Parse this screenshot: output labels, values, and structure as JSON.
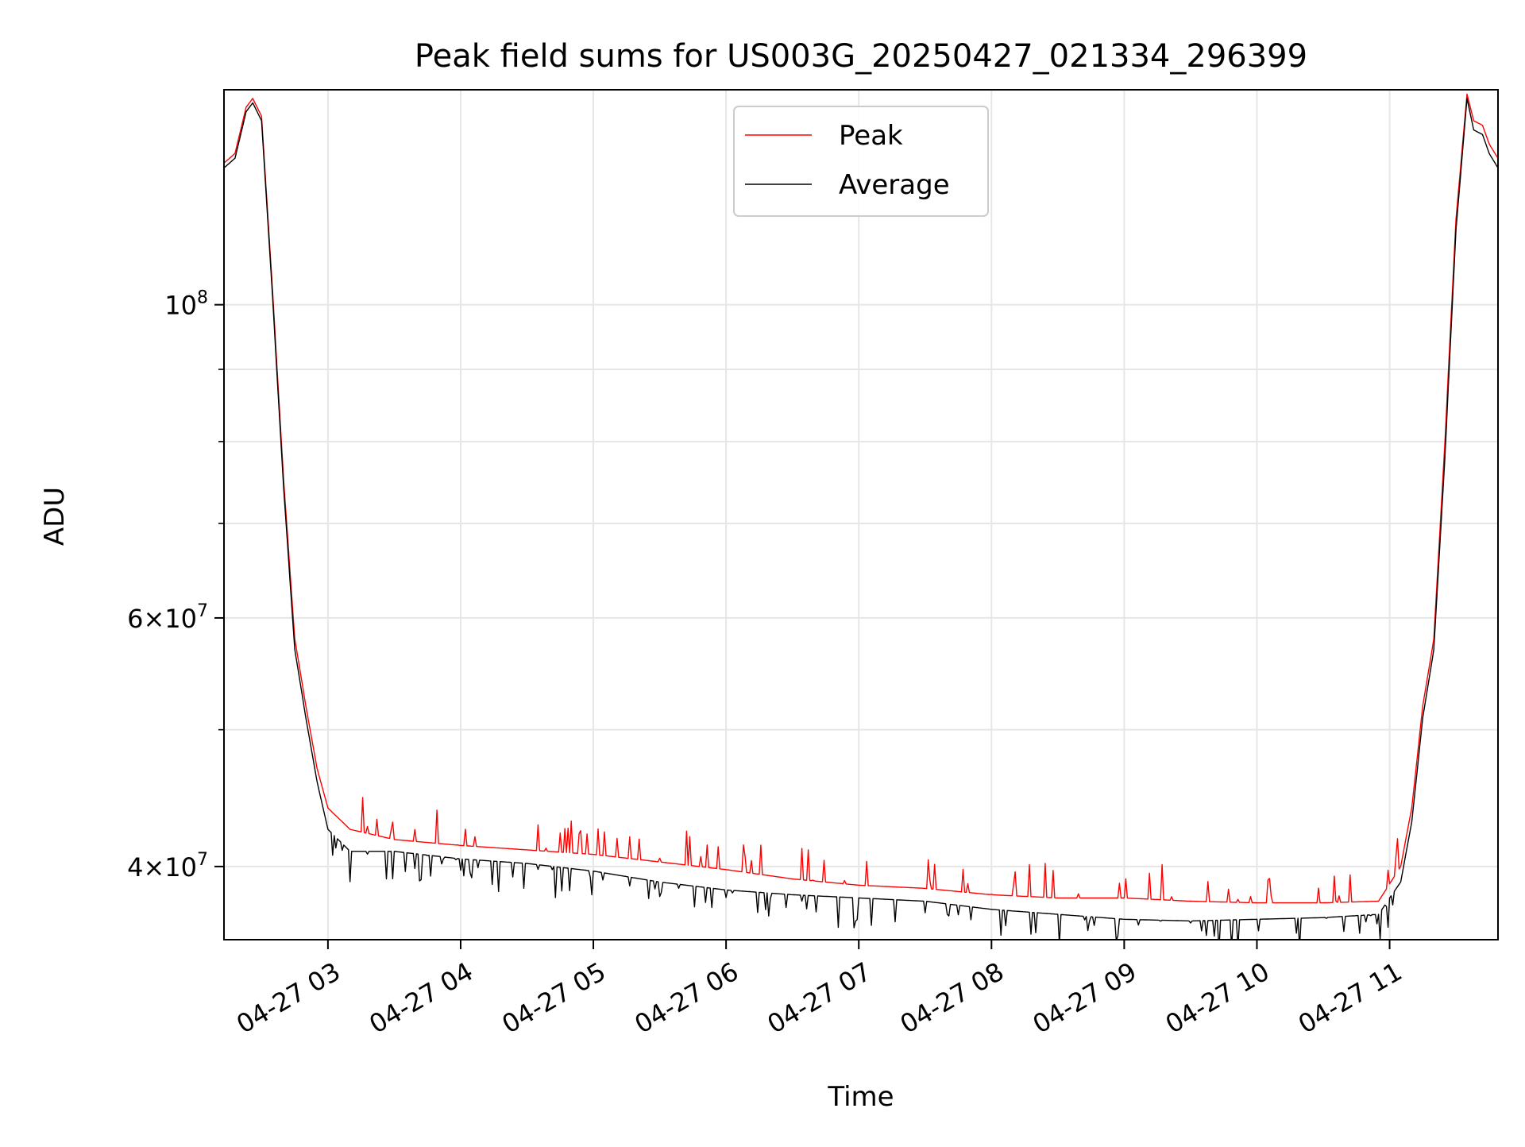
{
  "chart_data": {
    "type": "line",
    "title": "Peak field sums for US003G_20250427_021334_296399",
    "xlabel": "Time",
    "ylabel": "ADU",
    "yscale": "log",
    "xlim": [
      "2025-04-27 02:13",
      "2025-04-27 11:49"
    ],
    "ylim": [
      35500000,
      142000000
    ],
    "grid": true,
    "legend": "upper center",
    "xticks": [
      {
        "t": "2025-04-27 03:00",
        "label": "04-27 03"
      },
      {
        "t": "2025-04-27 04:00",
        "label": "04-27 04"
      },
      {
        "t": "2025-04-27 05:00",
        "label": "04-27 05"
      },
      {
        "t": "2025-04-27 06:00",
        "label": "04-27 06"
      },
      {
        "t": "2025-04-27 07:00",
        "label": "04-27 07"
      },
      {
        "t": "2025-04-27 08:00",
        "label": "04-27 08"
      },
      {
        "t": "2025-04-27 09:00",
        "label": "04-27 09"
      },
      {
        "t": "2025-04-27 10:00",
        "label": "04-27 10"
      },
      {
        "t": "2025-04-27 11:00",
        "label": "04-27 11"
      }
    ],
    "yticks": [
      {
        "v": 40000000,
        "base": "4×10",
        "exp": "7"
      },
      {
        "v": 60000000,
        "base": "6×10",
        "exp": "7"
      },
      {
        "v": 100000000,
        "base": "10",
        "exp": "8"
      }
    ],
    "yminor": [
      50000000,
      70000000,
      80000000,
      90000000
    ],
    "x": [
      "2025-04-27 02:13",
      "2025-04-27 02:18",
      "2025-04-27 02:23",
      "2025-04-27 02:26",
      "2025-04-27 02:30",
      "2025-04-27 02:35",
      "2025-04-27 02:40",
      "2025-04-27 02:45",
      "2025-04-27 02:50",
      "2025-04-27 02:55",
      "2025-04-27 03:00",
      "2025-04-27 03:10",
      "2025-04-27 03:30",
      "2025-04-27 04:00",
      "2025-04-27 04:30",
      "2025-04-27 05:00",
      "2025-04-27 05:30",
      "2025-04-27 06:00",
      "2025-04-27 06:30",
      "2025-04-27 07:00",
      "2025-04-27 07:30",
      "2025-04-27 08:00",
      "2025-04-27 08:30",
      "2025-04-27 09:00",
      "2025-04-27 09:30",
      "2025-04-27 10:00",
      "2025-04-27 10:30",
      "2025-04-27 10:55",
      "2025-04-27 11:05",
      "2025-04-27 11:10",
      "2025-04-27 11:15",
      "2025-04-27 11:20",
      "2025-04-27 11:25",
      "2025-04-27 11:30",
      "2025-04-27 11:35",
      "2025-04-27 11:38",
      "2025-04-27 11:42",
      "2025-04-27 11:45",
      "2025-04-27 11:49"
    ],
    "series": [
      {
        "name": "Peak",
        "color": "#ff0000",
        "values": [
          126000000,
          128000000,
          138000000,
          140000000,
          136000000,
          102000000,
          75000000,
          58000000,
          52000000,
          47000000,
          44000000,
          42500000,
          41800000,
          41400000,
          41100000,
          40800000,
          40300000,
          39800000,
          39200000,
          38800000,
          38600000,
          38200000,
          38000000,
          38000000,
          37800000,
          37700000,
          37700000,
          37800000,
          40000000,
          44000000,
          52000000,
          58000000,
          80000000,
          115000000,
          141000000,
          135000000,
          134000000,
          130000000,
          127000000
        ]
      },
      {
        "name": "Average",
        "color": "#000000",
        "values": [
          125000000,
          127000000,
          137000000,
          139000000,
          135000000,
          101000000,
          74000000,
          57000000,
          51000000,
          46000000,
          42500000,
          41000000,
          41000000,
          40500000,
          40200000,
          39700000,
          39000000,
          38500000,
          38200000,
          38000000,
          37800000,
          37300000,
          37000000,
          36700000,
          36600000,
          36700000,
          36800000,
          37000000,
          39000000,
          43000000,
          51000000,
          57000000,
          78000000,
          113000000,
          140000000,
          133000000,
          132000000,
          128000000,
          125000000
        ]
      }
    ]
  }
}
